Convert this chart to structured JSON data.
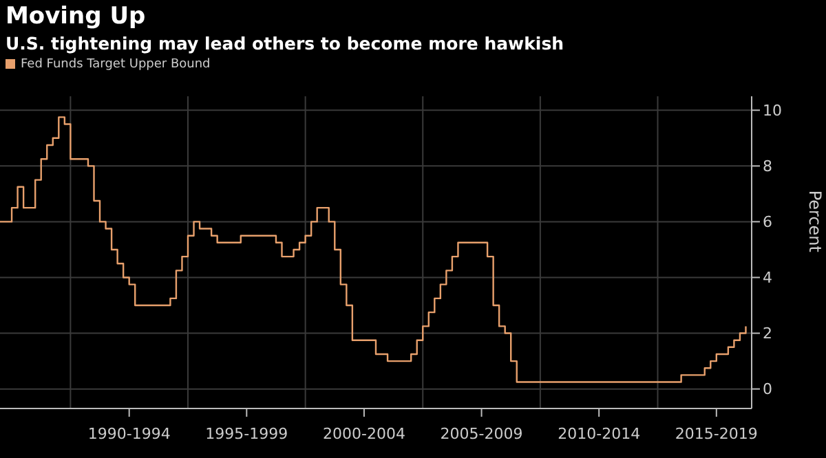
{
  "chart_data": {
    "type": "step",
    "title": "Moving Up",
    "subtitle": "U.S. tightening may lead others to become more hawkish",
    "ylabel": "Percent",
    "categories": [
      null,
      null,
      null,
      null,
      null,
      null,
      null,
      null,
      null,
      null,
      null,
      null,
      null,
      null,
      null,
      null,
      null,
      null,
      null,
      null,
      null,
      null,
      "1990-1994",
      null,
      null,
      null,
      null,
      null,
      null,
      null,
      null,
      null,
      null,
      null,
      null,
      null,
      null,
      null,
      null,
      null,
      null,
      null,
      "1995-1999",
      null,
      null,
      null,
      null,
      null,
      null,
      null,
      null,
      null,
      null,
      null,
      null,
      null,
      null,
      null,
      null,
      null,
      null,
      null,
      "2000-2004",
      null,
      null,
      null,
      null,
      null,
      null,
      null,
      null,
      null,
      null,
      null,
      null,
      null,
      null,
      null,
      null,
      null,
      null,
      null,
      "2005-2009",
      null,
      null,
      null,
      null,
      null,
      null,
      null,
      null,
      null,
      null,
      null,
      null,
      null,
      null,
      null,
      null,
      null,
      null,
      null,
      "2010-2014",
      null,
      null,
      null,
      null,
      null,
      null,
      null,
      null,
      null,
      null,
      null,
      null,
      null,
      null,
      null,
      null,
      null,
      null,
      null,
      "2015-2019",
      null,
      null,
      null,
      null,
      null
    ],
    "series": [
      {
        "name": "Fed Funds Target Upper Bound",
        "color": "#e8a06c",
        "values": [
          6.0,
          6.0,
          6.5,
          7.25,
          6.5,
          6.5,
          7.5,
          8.25,
          8.75,
          9.0,
          9.75,
          9.5,
          8.25,
          8.25,
          8.25,
          8.0,
          6.75,
          6.0,
          5.75,
          5.0,
          4.5,
          4.0,
          3.75,
          3.0,
          3.0,
          3.0,
          3.0,
          3.0,
          3.0,
          3.25,
          4.25,
          4.75,
          5.5,
          6.0,
          5.75,
          5.75,
          5.5,
          5.25,
          5.25,
          5.25,
          5.25,
          5.5,
          5.5,
          5.5,
          5.5,
          5.5,
          5.5,
          5.25,
          4.75,
          4.75,
          5.0,
          5.25,
          5.5,
          6.0,
          6.5,
          6.5,
          6.0,
          5.0,
          3.75,
          3.0,
          1.75,
          1.75,
          1.75,
          1.75,
          1.25,
          1.25,
          1.0,
          1.0,
          1.0,
          1.0,
          1.25,
          1.75,
          2.25,
          2.75,
          3.25,
          3.75,
          4.25,
          4.75,
          5.25,
          5.25,
          5.25,
          5.25,
          5.25,
          4.75,
          3.0,
          2.25,
          2.0,
          1.0,
          0.25,
          0.25,
          0.25,
          0.25,
          0.25,
          0.25,
          0.25,
          0.25,
          0.25,
          0.25,
          0.25,
          0.25,
          0.25,
          0.25,
          0.25,
          0.25,
          0.25,
          0.25,
          0.25,
          0.25,
          0.25,
          0.25,
          0.25,
          0.25,
          0.25,
          0.25,
          0.25,
          0.25,
          0.5,
          0.5,
          0.5,
          0.5,
          0.75,
          1.0,
          1.25,
          1.25,
          1.5,
          1.75,
          2.0,
          2.25
        ]
      }
    ],
    "ylim": [
      -0.7,
      10.5
    ],
    "yticks": [
      0,
      2,
      4,
      6,
      8,
      10
    ],
    "grid": true,
    "legend": "top left"
  }
}
